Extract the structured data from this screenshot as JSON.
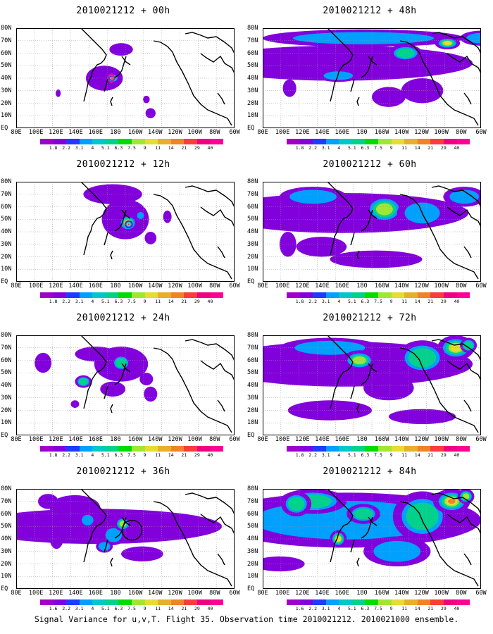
{
  "panels": [
    {
      "title": "2010021212 + 00h",
      "lead": "00h"
    },
    {
      "title": "2010021212 + 48h",
      "lead": "48h"
    },
    {
      "title": "2010021212 + 12h",
      "lead": "12h"
    },
    {
      "title": "2010021212 + 60h",
      "lead": "60h"
    },
    {
      "title": "2010021212 + 24h",
      "lead": "24h"
    },
    {
      "title": "2010021212 + 72h",
      "lead": "72h"
    },
    {
      "title": "2010021212 + 36h",
      "lead": "36h"
    },
    {
      "title": "2010021212 + 84h",
      "lead": "84h"
    }
  ],
  "map": {
    "lat_labels": [
      "80N",
      "70N",
      "60N",
      "50N",
      "40N",
      "30N",
      "20N",
      "10N",
      "EQ"
    ],
    "lon_labels": [
      "80E",
      "100E",
      "120E",
      "140E",
      "160E",
      "180",
      "160W",
      "140W",
      "120W",
      "100W",
      "80W",
      "60W"
    ]
  },
  "colorbar": {
    "labels": [
      "1.8",
      "2.2",
      "3.1",
      "4",
      "5.1",
      "6.3",
      "7.5",
      "9",
      "11",
      "14",
      "21",
      "29",
      "40"
    ],
    "labels_36h_84h": [
      "1.6",
      "2.2",
      "3.1",
      "4",
      "5.1",
      "6.3",
      "7.5",
      "9",
      "11",
      "14",
      "21",
      "29",
      "40"
    ],
    "colors": [
      "#a000c8",
      "#8200dc",
      "#1e3cff",
      "#00a0ff",
      "#00c8c8",
      "#00d28c",
      "#00dc00",
      "#a0e632",
      "#e6dc32",
      "#e6af2d",
      "#f08228",
      "#fa3c3c",
      "#f00082",
      "#ff0096"
    ]
  },
  "footer": "Signal Variance for u,v,T. Flight 35. Observation time 2010021212. 2010021000 ensemble."
}
